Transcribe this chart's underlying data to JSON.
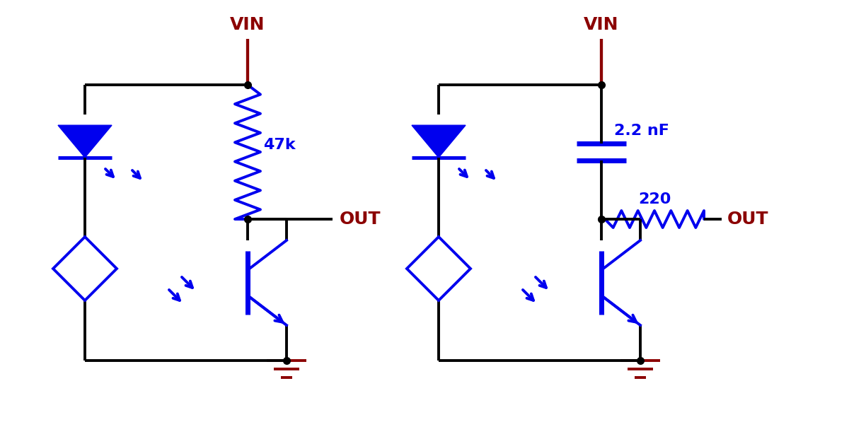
{
  "bg_color": "#ffffff",
  "blue": "#0000ee",
  "dark_red": "#8b0000",
  "wire_color": "#000000",
  "line_width": 2.8,
  "comp_lw": 2.8,
  "figsize": [
    12.0,
    6.21
  ],
  "dpi": 100,
  "labels": {
    "vin": "VIN",
    "out": "OUT",
    "r47k": "47k",
    "cap": "2.2 nF",
    "r220": "220"
  }
}
